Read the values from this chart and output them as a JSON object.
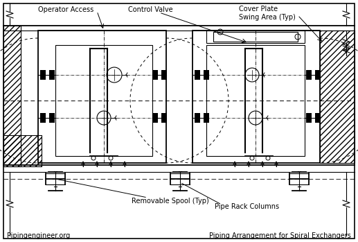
{
  "title": "Piping Arrangement for Spiral Exchangers",
  "subtitle": "Pipingengineer.org",
  "bg_color": "#ffffff",
  "annotations": {
    "operator_access": "Operator Access",
    "control_valve": "Control Valve",
    "cover_plate": "Cover Plate\nSwing Area (Typ)",
    "removable_spool": "Removable Spool (Typ)",
    "pipe_rack": "Pipe Rack Columns"
  },
  "fig_width": 5.17,
  "fig_height": 3.49,
  "dpi": 100
}
